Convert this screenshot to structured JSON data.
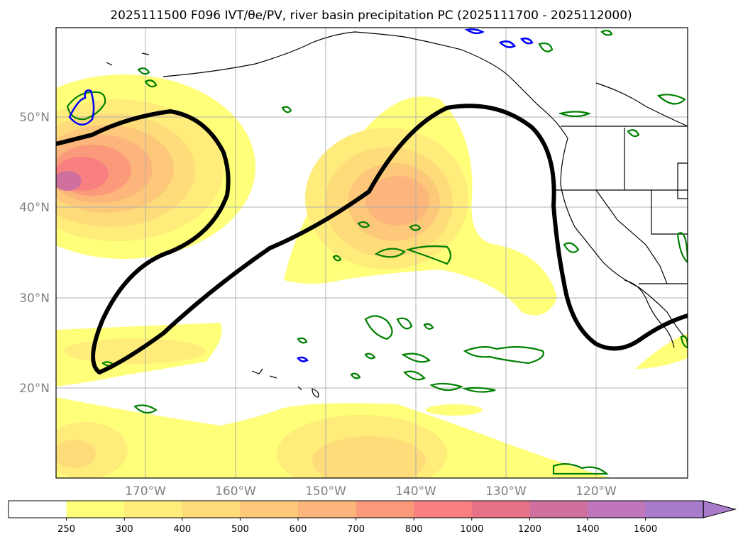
{
  "title": "2025111500 F096 IVT/θe/PV, river basin precipitation PC (2025111700 - 2025112000)",
  "map": {
    "lat_labels": [
      "50°N",
      "40°N",
      "30°N",
      "20°N"
    ],
    "lon_labels": [
      "170°W",
      "160°W",
      "150°W",
      "140°W",
      "130°W",
      "120°W"
    ],
    "colors": {
      "ivt_contour": "#000000",
      "pv_contour_green": "#008000",
      "theta_contour_blue": "#0000ff",
      "coastline": "#000000",
      "gridline": "#b0b0b0"
    }
  },
  "colorbar": {
    "levels": [
      "250",
      "300",
      "400",
      "500",
      "600",
      "700",
      "800",
      "1000",
      "1200",
      "1400",
      "1600"
    ],
    "colors": [
      "#ffffff",
      "#ffff7a",
      "#ffec7a",
      "#fedc7a",
      "#fdc87a",
      "#fcb57a",
      "#fb9a7a",
      "#f98080",
      "#e77288",
      "#d0709e",
      "#bf76ba",
      "#a97ccb"
    ],
    "extend": "max"
  }
}
